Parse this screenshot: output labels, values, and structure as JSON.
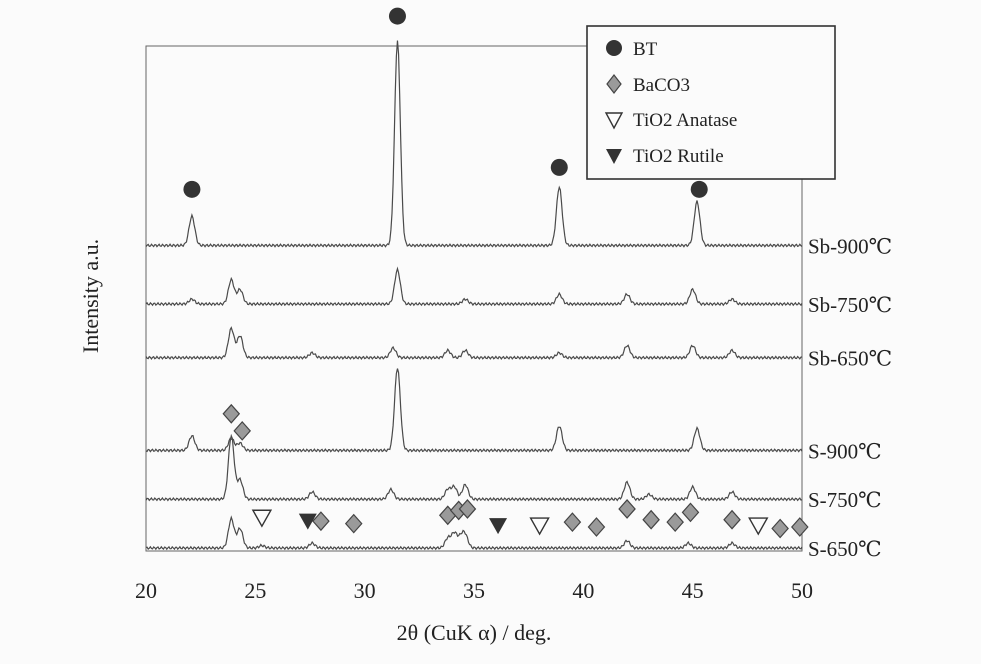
{
  "chart_data": {
    "type": "line",
    "title": "",
    "xlabel": "2θ (CuK α) / deg.",
    "ylabel": "Intensity a.u.",
    "xlim": [
      20,
      50
    ],
    "x_ticks": [
      "20",
      "25",
      "30",
      "35",
      "40",
      "45",
      "50"
    ],
    "grid": false,
    "legend_placement": "top-right",
    "legend": [
      {
        "label": "BT",
        "marker": "filled-circle"
      },
      {
        "label": "BaCO3",
        "marker": "gray-diamond"
      },
      {
        "label": "TiO2  Anatase",
        "marker": "open-down-triangle"
      },
      {
        "label": "TiO2  Rutile",
        "marker": "filled-down-triangle"
      }
    ],
    "series": [
      {
        "name": "Sb-900℃",
        "baseline": 0.62,
        "peaks": [
          [
            22.1,
            0.06
          ],
          [
            31.5,
            0.42
          ],
          [
            38.9,
            0.12
          ],
          [
            45.2,
            0.09
          ]
        ]
      },
      {
        "name": "Sb-750℃",
        "baseline": 0.5,
        "peaks": [
          [
            22.1,
            0.01
          ],
          [
            23.9,
            0.05
          ],
          [
            24.3,
            0.03
          ],
          [
            31.5,
            0.07
          ],
          [
            34.6,
            0.01
          ],
          [
            38.9,
            0.02
          ],
          [
            42.0,
            0.02
          ],
          [
            45.0,
            0.03
          ],
          [
            46.8,
            0.01
          ]
        ]
      },
      {
        "name": "Sb-650℃",
        "baseline": 0.39,
        "peaks": [
          [
            23.9,
            0.06
          ],
          [
            24.3,
            0.045
          ],
          [
            27.6,
            0.01
          ],
          [
            31.3,
            0.02
          ],
          [
            33.8,
            0.015
          ],
          [
            34.6,
            0.015
          ],
          [
            38.9,
            0.01
          ],
          [
            42.0,
            0.025
          ],
          [
            45.0,
            0.025
          ],
          [
            46.8,
            0.015
          ]
        ]
      },
      {
        "name": "S-900℃",
        "baseline": 0.2,
        "peaks": [
          [
            22.1,
            0.03
          ],
          [
            23.9,
            0.025
          ],
          [
            24.3,
            0.015
          ],
          [
            31.5,
            0.17
          ],
          [
            38.9,
            0.05
          ],
          [
            45.2,
            0.045
          ]
        ]
      },
      {
        "name": "S-750℃",
        "baseline": 0.1,
        "peaks": [
          [
            23.9,
            0.13
          ],
          [
            24.3,
            0.04
          ],
          [
            27.6,
            0.015
          ],
          [
            31.2,
            0.02
          ],
          [
            33.8,
            0.02
          ],
          [
            34.1,
            0.025
          ],
          [
            34.6,
            0.03
          ],
          [
            42.0,
            0.035
          ],
          [
            43.0,
            0.01
          ],
          [
            45.0,
            0.025
          ],
          [
            46.8,
            0.015
          ]
        ]
      },
      {
        "name": "S-650℃",
        "baseline": 0.0,
        "peaks": [
          [
            23.9,
            0.06
          ],
          [
            24.3,
            0.04
          ],
          [
            25.3,
            0.005
          ],
          [
            27.6,
            0.01
          ],
          [
            33.8,
            0.02
          ],
          [
            34.1,
            0.03
          ],
          [
            34.4,
            0.02
          ],
          [
            34.6,
            0.025
          ],
          [
            42.0,
            0.015
          ],
          [
            44.8,
            0.01
          ],
          [
            46.8,
            0.01
          ]
        ]
      }
    ],
    "markers": {
      "BT": [
        [
          22.1,
          0.735
        ],
        [
          31.5,
          1.09
        ],
        [
          38.9,
          0.78
        ],
        [
          45.3,
          0.735
        ]
      ],
      "BaCO3": [
        [
          23.9,
          0.275
        ],
        [
          24.4,
          0.24
        ],
        [
          28.0,
          0.055
        ],
        [
          29.5,
          0.05
        ],
        [
          33.8,
          0.067
        ],
        [
          34.3,
          0.077
        ],
        [
          34.7,
          0.08
        ],
        [
          39.5,
          0.053
        ],
        [
          40.6,
          0.043
        ],
        [
          42.0,
          0.08
        ],
        [
          43.1,
          0.058
        ],
        [
          44.2,
          0.053
        ],
        [
          44.9,
          0.073
        ],
        [
          46.8,
          0.058
        ],
        [
          49.0,
          0.04
        ],
        [
          49.9,
          0.043
        ]
      ],
      "Anatase": [
        [
          25.3,
          0.063
        ],
        [
          38.0,
          0.047
        ],
        [
          48.0,
          0.047
        ]
      ],
      "Rutile": [
        [
          27.4,
          0.056
        ],
        [
          36.1,
          0.047
        ]
      ]
    }
  }
}
